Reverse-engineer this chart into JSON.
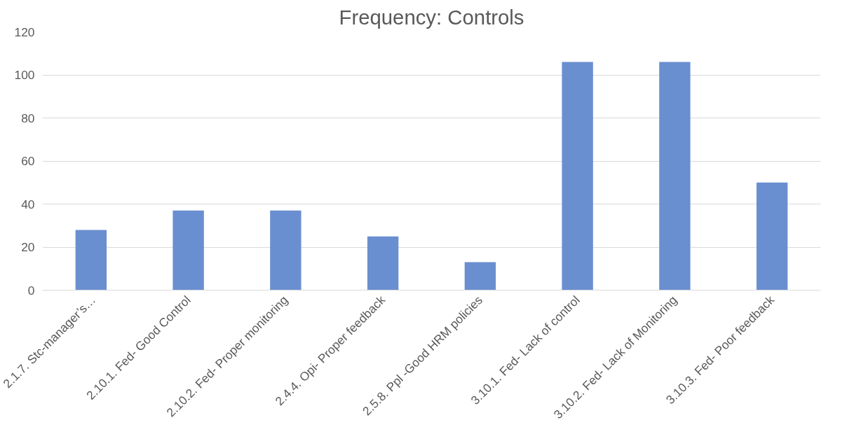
{
  "chart_data": {
    "type": "bar",
    "title": "Frequency: Controls",
    "categories": [
      "2.1.7. Stc-manager’s…",
      "2.10.1. Fed- Good Control",
      "2.10.2. Fed- Proper monitoring",
      "2.4.4. Opi- Proper feedback",
      "2.5.8. Ppl -Good HRM policies",
      "3.10.1. Fed- Lack of control",
      "3.10.2. Fed- Lack of Monitoring",
      "3.10.3. Fed- Poor feedback"
    ],
    "values": [
      28,
      37,
      37,
      25,
      13,
      106,
      106,
      50
    ],
    "color": "#6a8fd0",
    "ylim": [
      0,
      120
    ],
    "yticks": [
      0,
      20,
      40,
      60,
      80,
      100,
      120
    ],
    "grid": "y"
  }
}
